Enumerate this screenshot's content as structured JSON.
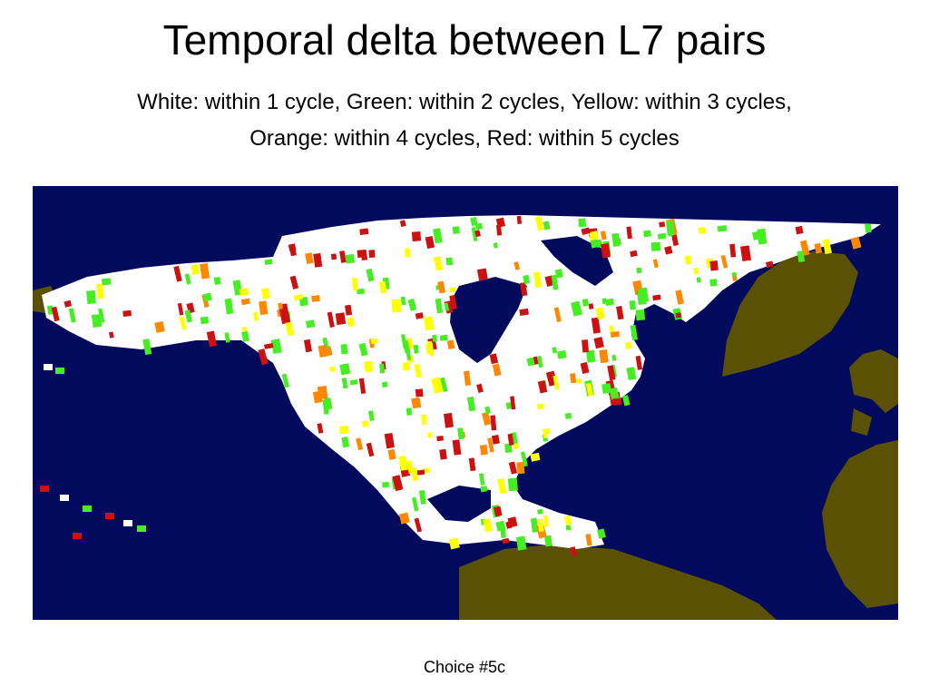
{
  "slide": {
    "title": "Temporal delta between L7 pairs",
    "subtitle_line1": "White: within 1 cycle, Green: within 2 cycles, Yellow: within 3 cycles,",
    "subtitle_line2": "Orange: within 4 cycles, Red: within 5 cycles",
    "footer": "Choice #5c"
  },
  "map": {
    "colors": {
      "ocean": "#020a5e",
      "land": "#5b5105",
      "within_1_cycle": "#ffffff",
      "within_2_cycles": "#44ee22",
      "within_3_cycles": "#ffff00",
      "within_4_cycles": "#ff8800",
      "within_5_cycles": "#cc1111"
    }
  }
}
